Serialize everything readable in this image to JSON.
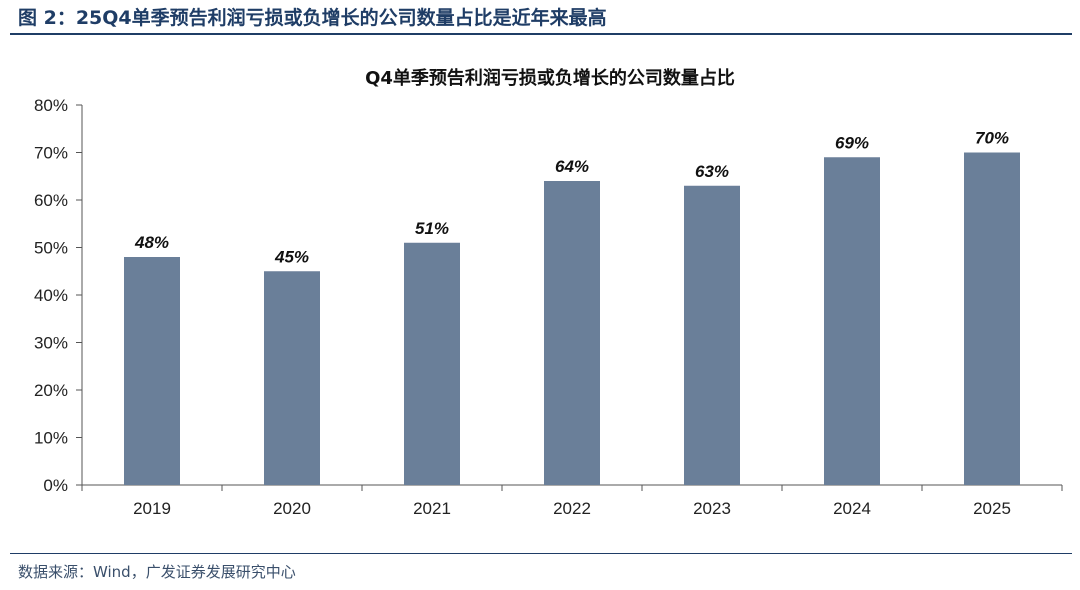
{
  "caption": "图 2：25Q4单季预告利润亏损或负增长的公司数量占比是近年来最高",
  "source": "数据来源：Wind，广发证券发展研究中心",
  "chart_data": {
    "type": "bar",
    "title": "Q4单季预告利润亏损或负增长的公司数量占比",
    "categories": [
      "2019",
      "2020",
      "2021",
      "2022",
      "2023",
      "2024",
      "2025"
    ],
    "values": [
      48,
      45,
      51,
      64,
      63,
      69,
      70
    ],
    "value_labels": [
      "48%",
      "45%",
      "51%",
      "64%",
      "63%",
      "69%",
      "70%"
    ],
    "ylim": [
      0,
      80
    ],
    "yticks": [
      0,
      10,
      20,
      30,
      40,
      50,
      60,
      70,
      80
    ],
    "ytick_labels": [
      "0%",
      "10%",
      "20%",
      "30%",
      "40%",
      "50%",
      "60%",
      "70%",
      "80%"
    ],
    "xlabel": "",
    "ylabel": "",
    "bar_color": "#6a7f99",
    "grid": false,
    "legend": "none"
  }
}
